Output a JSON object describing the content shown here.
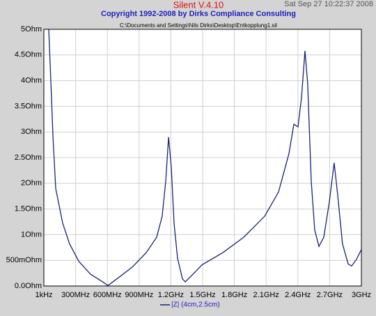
{
  "chart_data": {
    "type": "line",
    "title": "Silent V.4.10",
    "subtitle": "Copyright 1992-2008 by Dirks Compliance Consulting",
    "timestamp": "Sat Sep 27 10:22:37 2008",
    "file_path": "C:\\Documents and Settings\\Nils Dirks\\Desktop\\Entkopplung1.sil",
    "grid": true,
    "xlim": [
      0.001,
      3000
    ],
    "ylim": [
      0,
      5
    ],
    "xticks": [
      {
        "value": 0.001,
        "label": "1kHz"
      },
      {
        "value": 300,
        "label": "300MHz"
      },
      {
        "value": 600,
        "label": "600MHz"
      },
      {
        "value": 900,
        "label": "900MHz"
      },
      {
        "value": 1200,
        "label": "1.2GHz"
      },
      {
        "value": 1500,
        "label": "1.5GHz"
      },
      {
        "value": 1800,
        "label": "1.8GHz"
      },
      {
        "value": 2100,
        "label": "2.1GHz"
      },
      {
        "value": 2400,
        "label": "2.4GHz"
      },
      {
        "value": 2700,
        "label": "2.7GHz"
      },
      {
        "value": 3000,
        "label": "3GHz"
      }
    ],
    "yticks": [
      {
        "value": 0,
        "label": "0.0Ohm"
      },
      {
        "value": 0.5,
        "label": "500mOhm"
      },
      {
        "value": 1,
        "label": "1Ohm"
      },
      {
        "value": 1.5,
        "label": "1.5Ohm"
      },
      {
        "value": 2,
        "label": "2Ohm"
      },
      {
        "value": 2.5,
        "label": "2.5Ohm"
      },
      {
        "value": 3,
        "label": "3Ohm"
      },
      {
        "value": 3.5,
        "label": "3.5Ohm"
      },
      {
        "value": 4,
        "label": "4Ohm"
      },
      {
        "value": 4.5,
        "label": "4.5Ohm"
      },
      {
        "value": 5,
        "label": "5Ohm"
      }
    ],
    "x": [
      46,
      66,
      86,
      112,
      178,
      243,
      330,
      441,
      540,
      605,
      704,
      836,
      967,
      1066,
      1118,
      1151,
      1178,
      1204,
      1230,
      1263,
      1309,
      1336,
      1395,
      1493,
      1691,
      1888,
      2086,
      2217,
      2316,
      2362,
      2401,
      2434,
      2467,
      2493,
      2526,
      2559,
      2599,
      2645,
      2697,
      2743,
      2776,
      2822,
      2875,
      2908,
      2954,
      3000
    ],
    "series": [
      {
        "name": "|Z| (4cm,2.5cm)",
        "color": "#1a1f7a",
        "values": [
          5.0,
          4.0,
          2.9,
          1.9,
          1.22,
          0.82,
          0.48,
          0.23,
          0.1,
          0.01,
          0.16,
          0.37,
          0.65,
          0.95,
          1.36,
          2.04,
          2.9,
          2.31,
          1.22,
          0.54,
          0.14,
          0.08,
          0.2,
          0.41,
          0.65,
          0.95,
          1.36,
          1.83,
          2.58,
          3.15,
          3.1,
          3.67,
          4.58,
          3.94,
          2.04,
          1.09,
          0.77,
          0.95,
          1.63,
          2.4,
          1.77,
          0.82,
          0.43,
          0.39,
          0.52,
          0.71
        ]
      }
    ]
  }
}
